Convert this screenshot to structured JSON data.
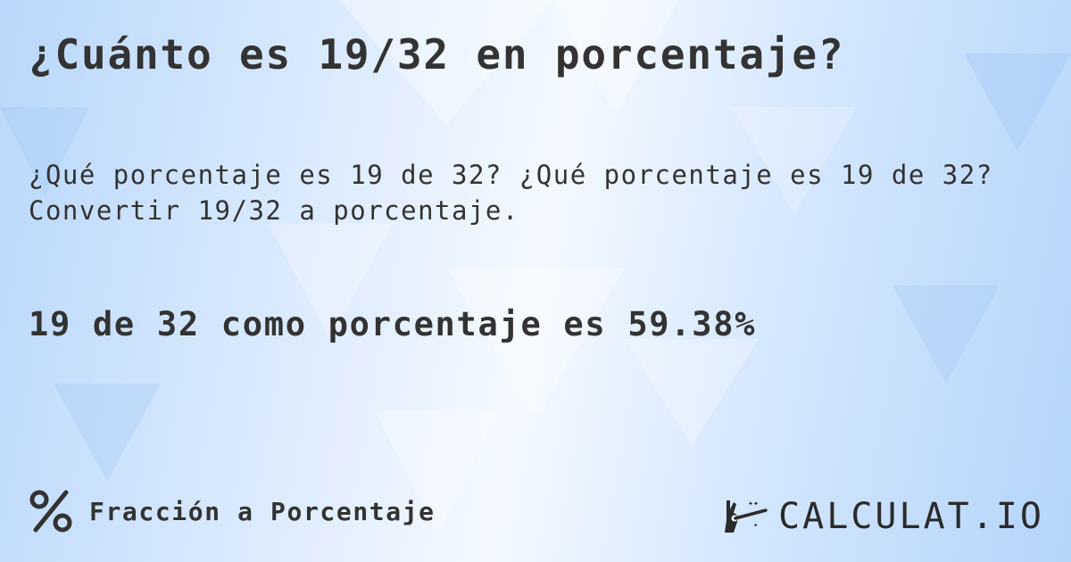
{
  "title": "¿Cuánto es 19/32 en porcentaje?",
  "questions": {
    "line1": "¿Qué porcentaje es 19 de 32? ¿Qué porcentaje es 19 de 32?",
    "line2": "Convertir 19/32 a porcentaje."
  },
  "result": "19 de 32 como porcentaje es 59.38%",
  "footer": {
    "icon": "percent-icon",
    "label": "Fracción a Porcentaje"
  },
  "logo": {
    "text": "CALCULAT.IO",
    "icon": "magic-hand-icon"
  },
  "colors": {
    "text": "#333333",
    "background": "#cfe4fc"
  }
}
